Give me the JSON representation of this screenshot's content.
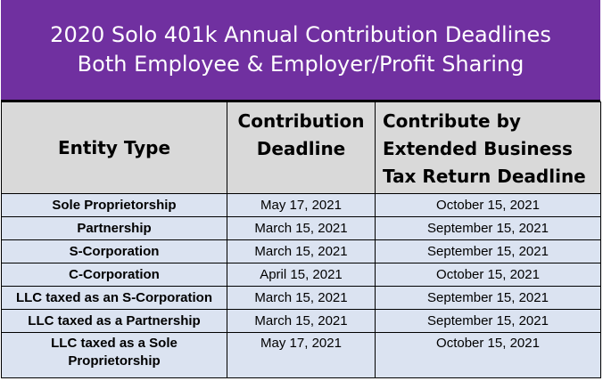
{
  "banner": {
    "line1": "2020 Solo 401k Annual Contribution Deadlines",
    "line2": "Both Employee & Employer/Profit Sharing",
    "color": "#7030a0"
  },
  "table": {
    "headers": {
      "entity": "Entity Type",
      "deadline_line1": "Contribution",
      "deadline_line2": "Deadline",
      "extended_line1": "Contribute by",
      "extended_line2": "Extended Business",
      "extended_line3": "Tax Return Deadline"
    },
    "rows": [
      {
        "entity": "Sole Proprietorship",
        "deadline": "May 17, 2021",
        "extended": "October 15, 2021"
      },
      {
        "entity": "Partnership",
        "deadline": "March 15, 2021",
        "extended": "September 15, 2021"
      },
      {
        "entity": "S-Corporation",
        "deadline": "March 15, 2021",
        "extended": "September 15, 2021"
      },
      {
        "entity": "C-Corporation",
        "deadline": "April 15, 2021",
        "extended": "October 15, 2021"
      },
      {
        "entity": "LLC taxed as an S-Corporation",
        "deadline": "March 15, 2021",
        "extended": "September 15, 2021"
      },
      {
        "entity": "LLC taxed as a Partnership",
        "deadline": "March 15, 2021",
        "extended": "September 15, 2021"
      },
      {
        "entity_line1": "LLC taxed as a Sole",
        "entity_line2": "Proprietorship",
        "deadline": "May 17, 2021",
        "extended": "October 15, 2021"
      }
    ],
    "header_bg": "#d9d9d9",
    "row_bg": "#dbe3f1"
  }
}
